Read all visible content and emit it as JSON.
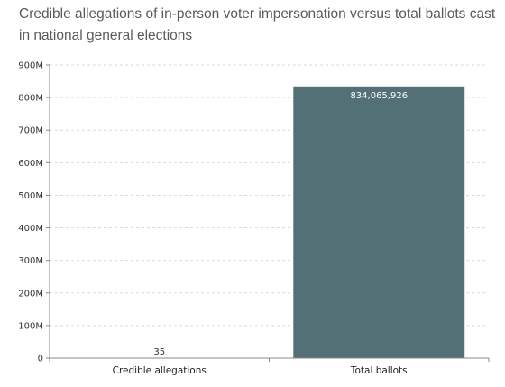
{
  "chart_data": {
    "type": "bar",
    "title": "Credible allegations of in-person voter impersonation versus total ballots cast in national general elections",
    "categories": [
      "Credible allegations",
      "Total ballots"
    ],
    "values": [
      35,
      834065926
    ],
    "value_labels": [
      "35",
      "834,065,926"
    ],
    "ylim": [
      0,
      900000000
    ],
    "y_ticks": [
      0,
      100000000,
      200000000,
      300000000,
      400000000,
      500000000,
      600000000,
      700000000,
      800000000,
      900000000
    ],
    "y_tick_labels": [
      "0",
      "100M",
      "200M",
      "300M",
      "400M",
      "500M",
      "600M",
      "700M",
      "800M",
      "900M"
    ],
    "xlabel": "",
    "ylabel": "",
    "grid": true,
    "colors": {
      "bar": "#527075",
      "grid": "#d9d9d9",
      "axis": "#888888",
      "label_inside": "#ffffff",
      "label_outside": "#333333"
    }
  }
}
